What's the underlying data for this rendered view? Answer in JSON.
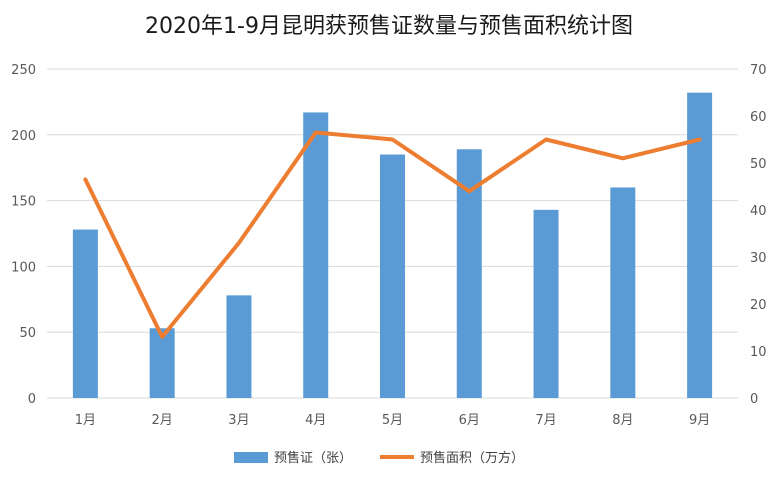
{
  "chart_data": {
    "type": "bar",
    "title": "2020年1-9月昆明获预售证数量与预售面积统计图",
    "categories": [
      "1月",
      "2月",
      "3月",
      "4月",
      "5月",
      "6月",
      "7月",
      "8月",
      "9月"
    ],
    "series": [
      {
        "name": "预售证（张）",
        "type": "bar",
        "axis": "left",
        "color": "#5B9BD5",
        "values": [
          128,
          53,
          78,
          217,
          185,
          189,
          143,
          160,
          232
        ]
      },
      {
        "name": "预售面积（万方）",
        "type": "line",
        "axis": "right",
        "color": "#ED7D31",
        "values": [
          46.5,
          13,
          33,
          56.5,
          55,
          44,
          55,
          51,
          55
        ]
      }
    ],
    "y_left": {
      "ylim": [
        0,
        250
      ],
      "ticks": [
        0,
        50,
        100,
        150,
        200,
        250
      ]
    },
    "y_right": {
      "ylim": [
        0,
        70
      ],
      "ticks": [
        0,
        10,
        20,
        30,
        40,
        50,
        60,
        70
      ]
    },
    "grid": true,
    "legend_position": "bottom"
  }
}
